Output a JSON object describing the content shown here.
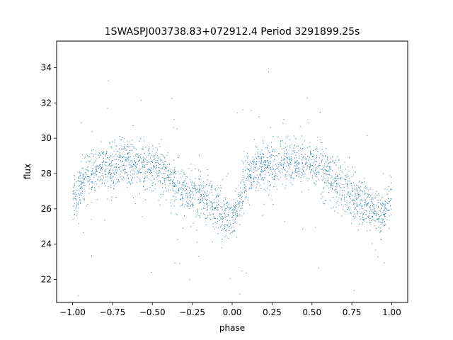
{
  "chart_data": {
    "type": "scatter",
    "title": "1SWASPJ003738.83+072912.4 Period 3291899.25s",
    "xlabel": "phase",
    "ylabel": "flux",
    "xlim": [
      -1.1,
      1.1
    ],
    "ylim": [
      20.7,
      35.5
    ],
    "xticks": [
      -1.0,
      -0.75,
      -0.5,
      -0.25,
      0.0,
      0.25,
      0.5,
      0.75,
      1.0
    ],
    "xtick_labels": [
      "−1.00",
      "−0.75",
      "−0.50",
      "−0.25",
      "0.00",
      "0.25",
      "0.50",
      "0.75",
      "1.00"
    ],
    "yticks": [
      22,
      24,
      26,
      28,
      30,
      32,
      34
    ],
    "ytick_labels": [
      "22",
      "24",
      "26",
      "28",
      "30",
      "32",
      "34"
    ],
    "grid": false,
    "legend": "none",
    "point_color": "#1f77b4",
    "series": [
      {
        "trend_phase": [
          -1.0,
          -0.95,
          -0.9,
          -0.85,
          -0.8,
          -0.75,
          -0.7,
          -0.65,
          -0.6,
          -0.55,
          -0.5,
          -0.45,
          -0.4,
          -0.35,
          -0.3,
          -0.25,
          -0.2,
          -0.15,
          -0.1,
          -0.05,
          0.0,
          0.05,
          0.1,
          0.15,
          0.2,
          0.25,
          0.3,
          0.35,
          0.4,
          0.45,
          0.5,
          0.55,
          0.6,
          0.65,
          0.7,
          0.75,
          0.8,
          0.85,
          0.9,
          0.95,
          1.0
        ],
        "trend_flux": [
          26.4,
          27.5,
          28.0,
          28.2,
          28.3,
          28.5,
          28.7,
          28.7,
          28.6,
          28.5,
          28.4,
          28.2,
          27.9,
          27.4,
          27.0,
          26.8,
          26.7,
          26.5,
          26.2,
          25.6,
          25.4,
          26.6,
          27.8,
          28.3,
          28.4,
          28.6,
          28.8,
          28.7,
          28.6,
          28.5,
          28.4,
          28.3,
          28.0,
          27.5,
          27.0,
          26.6,
          26.4,
          26.2,
          25.9,
          25.6,
          26.9
        ],
        "scatter_spread": 0.65
      }
    ]
  }
}
